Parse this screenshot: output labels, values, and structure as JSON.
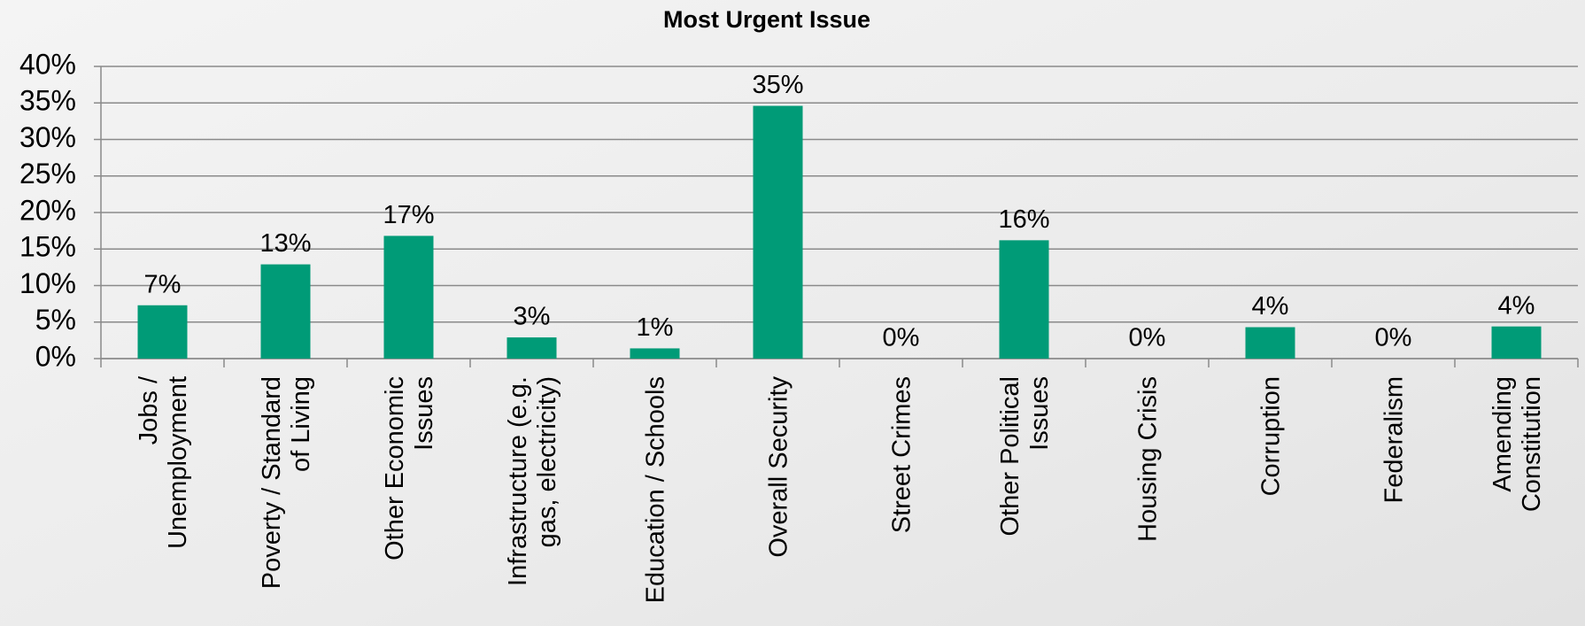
{
  "chart_data": {
    "type": "bar",
    "title": "Most Urgent Issue",
    "categories": [
      "Jobs /\nUnemployment",
      "Poverty / Standard\nof Living",
      "Other Economic\nIssues",
      "Infrastructure (e.g.\ngas, electricity)",
      "Education / Schools",
      "Overall Security",
      "Street Crimes",
      "Other Political\nIssues",
      "Housing Crisis",
      "Corruption",
      "Federalism",
      "Amending\nConstitution"
    ],
    "values": [
      7.3,
      12.9,
      16.8,
      2.9,
      1.4,
      34.6,
      0,
      16.2,
      0,
      4.3,
      0,
      4.4
    ],
    "value_labels": [
      "7%",
      "13%",
      "17%",
      "3%",
      "1%",
      "35%",
      "0%",
      "16%",
      "0%",
      "4%",
      "0%",
      "4%"
    ],
    "color": "#009b77",
    "ylim": [
      0,
      40
    ],
    "yticks": [
      {
        "value": 0,
        "label": "0%"
      },
      {
        "value": 5,
        "label": "5%"
      },
      {
        "value": 10,
        "label": "10%"
      },
      {
        "value": 15,
        "label": "15%"
      },
      {
        "value": 20,
        "label": "20%"
      },
      {
        "value": 25,
        "label": "25%"
      },
      {
        "value": 30,
        "label": "30%"
      },
      {
        "value": 35,
        "label": "35%"
      },
      {
        "value": 40,
        "label": "40%"
      }
    ],
    "grid": true
  }
}
